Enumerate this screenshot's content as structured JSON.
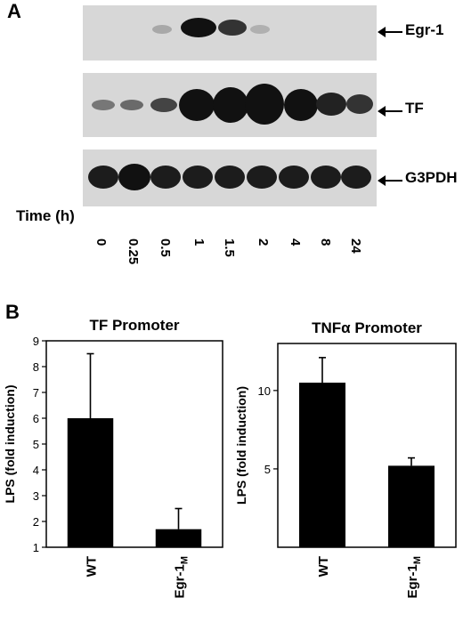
{
  "panel_a": {
    "letter": "A",
    "blot_labels": [
      "Egr-1",
      "TF",
      "G3PDH"
    ],
    "time_label": "Time (h)",
    "time_points": [
      "0",
      "0.25",
      "0.5",
      "1",
      "1.5",
      "2",
      "4",
      "8",
      "24"
    ]
  },
  "panel_b": {
    "letter": "B"
  },
  "chart_data": [
    {
      "type": "bar",
      "title": "TF Promoter",
      "ylabel": "LPS (fold induction)",
      "categories": [
        "WT",
        "Egr-1M"
      ],
      "values": [
        6.0,
        1.7
      ],
      "error_upper": [
        8.5,
        2.5
      ],
      "ylim": [
        1,
        9
      ],
      "yticks": [
        1,
        2,
        3,
        4,
        5,
        6,
        7,
        8,
        9
      ],
      "grid": false,
      "bar_color": "#000000"
    },
    {
      "type": "bar",
      "title": "TNFα Promoter",
      "ylabel": "LPS (fold induction)",
      "categories": [
        "WT",
        "Egr-1M"
      ],
      "values": [
        10.5,
        5.2
      ],
      "error_upper": [
        12.1,
        5.7
      ],
      "ylim": [
        0,
        13
      ],
      "yticks": [
        5,
        10
      ],
      "grid": false,
      "bar_color": "#000000"
    }
  ]
}
